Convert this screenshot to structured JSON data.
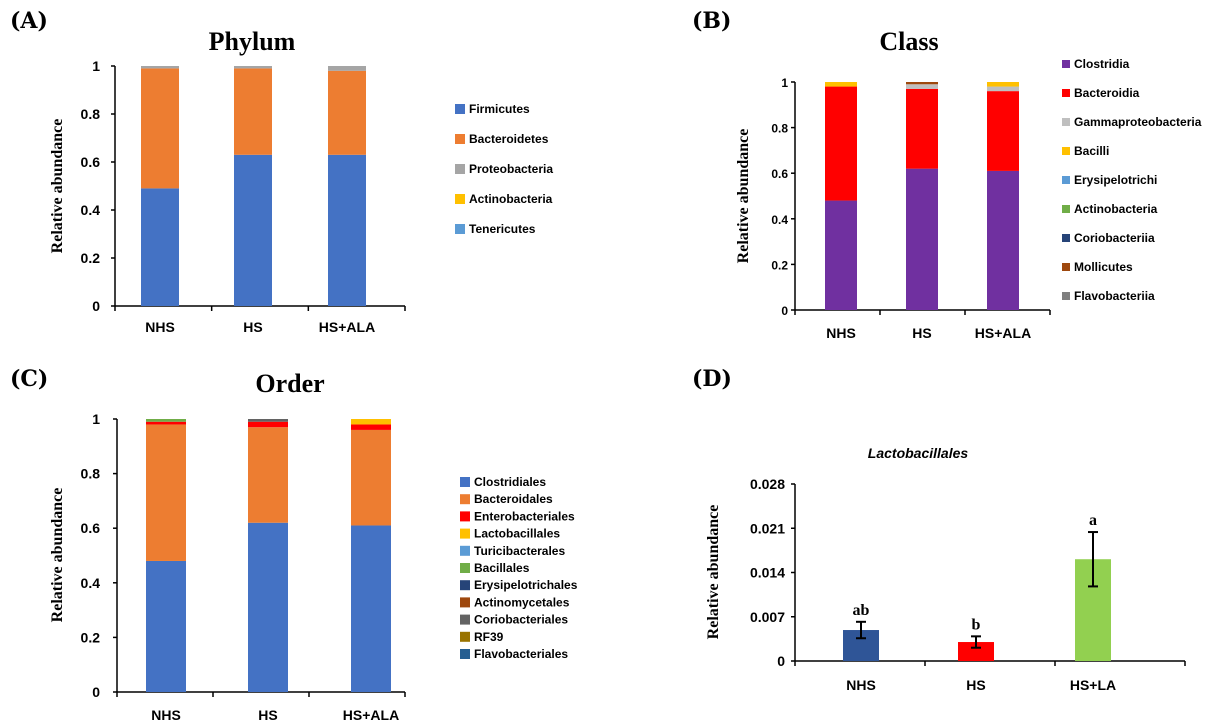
{
  "colors": {
    "Firmicutes": "#4472C4",
    "Bacteroidetes": "#ED7D31",
    "Proteobacteria": "#A5A5A5",
    "Actinobacteria": "#FFC000",
    "Tenericutes": "#5B9BD5",
    "Clostridia": "#7030A0",
    "Bacteroidia": "#FF0000",
    "Gammaproteobacteria": "#BFBFBF",
    "Bacilli": "#FFC000",
    "Erysipelotrichi": "#5B9BD5",
    "Actinobacteria_class": "#70AD47",
    "Coriobacteriia": "#264478",
    "Mollicutes": "#9E480E",
    "Flavobacteriia": "#7F7F7F",
    "Clostridiales": "#4472C4",
    "Bacteroidales": "#ED7D31",
    "Enterobacteriales": "#FF0000",
    "Lactobacillales": "#FFC000",
    "Turicibacterales": "#5B9BD5",
    "Bacillales": "#70AD47",
    "Erysipelotrichales": "#264478",
    "Actinomycetales": "#9E480E",
    "Coriobacteriales": "#636363",
    "RF39": "#997300",
    "Flavobacteriales": "#255E91",
    "NHS_bar": "#2F5597",
    "HS_bar": "#FF0000",
    "HSLA_bar": "#92D050"
  },
  "chart_data": [
    {
      "panel": "(A)",
      "type": "bar",
      "stacked": true,
      "title": "Phylum",
      "ylabel": "Relative abundance",
      "categories": [
        "NHS",
        "HS",
        "HS+ALA"
      ],
      "ylim": [
        0,
        1
      ],
      "yticks": [
        "0",
        "0.2",
        "0.4",
        "0.6",
        "0.8",
        "1"
      ],
      "series": [
        {
          "name": "Firmicutes",
          "values": [
            0.49,
            0.63,
            0.63
          ]
        },
        {
          "name": "Bacteroidetes",
          "values": [
            0.5,
            0.36,
            0.35
          ]
        },
        {
          "name": "Proteobacteria",
          "values": [
            0.01,
            0.01,
            0.02
          ]
        },
        {
          "name": "Actinobacteria",
          "values": [
            0.0,
            0.0,
            0.0
          ]
        },
        {
          "name": "Tenericutes",
          "values": [
            0.0,
            0.0,
            0.0
          ]
        }
      ],
      "legend": "right"
    },
    {
      "panel": "(B)",
      "type": "bar",
      "stacked": true,
      "title": "Class",
      "ylabel": "Relative abundance",
      "categories": [
        "NHS",
        "HS",
        "HS+ALA"
      ],
      "ylim": [
        0,
        1
      ],
      "yticks": [
        "0",
        "0.2",
        "0.4",
        "0.6",
        "0.8",
        "1"
      ],
      "series": [
        {
          "name": "Clostridia",
          "values": [
            0.48,
            0.62,
            0.61
          ]
        },
        {
          "name": "Bacteroidia",
          "values": [
            0.5,
            0.35,
            0.35
          ]
        },
        {
          "name": "Gammaproteobacteria",
          "values": [
            0.0,
            0.02,
            0.02
          ]
        },
        {
          "name": "Bacilli",
          "values": [
            0.02,
            0.0,
            0.02
          ]
        },
        {
          "name": "Erysipelotrichi",
          "values": [
            0.0,
            0.0,
            0.0
          ]
        },
        {
          "name": "Actinobacteria",
          "values": [
            0.0,
            0.0,
            0.0
          ]
        },
        {
          "name": "Coriobacteriia",
          "values": [
            0.0,
            0.0,
            0.0
          ]
        },
        {
          "name": "Mollicutes",
          "values": [
            0.0,
            0.01,
            0.0
          ]
        },
        {
          "name": "Flavobacteriia",
          "values": [
            0.0,
            0.0,
            0.0
          ]
        }
      ],
      "legend": "right"
    },
    {
      "panel": "(C)",
      "type": "bar",
      "stacked": true,
      "title": "Order",
      "ylabel": "Relative abundance",
      "categories": [
        "NHS",
        "HS",
        "HS+ALA"
      ],
      "ylim": [
        0,
        1
      ],
      "yticks": [
        "0",
        "0.2",
        "0.4",
        "0.6",
        "0.8",
        "1"
      ],
      "series": [
        {
          "name": "Clostridiales",
          "values": [
            0.48,
            0.62,
            0.61
          ]
        },
        {
          "name": "Bacteroidales",
          "values": [
            0.5,
            0.35,
            0.35
          ]
        },
        {
          "name": "Enterobacteriales",
          "values": [
            0.01,
            0.02,
            0.02
          ]
        },
        {
          "name": "Lactobacillales",
          "values": [
            0.0,
            0.0,
            0.02
          ]
        },
        {
          "name": "Turicibacterales",
          "values": [
            0.0,
            0.0,
            0.0
          ]
        },
        {
          "name": "Bacillales",
          "values": [
            0.01,
            0.0,
            0.0
          ]
        },
        {
          "name": "Erysipelotrichales",
          "values": [
            0.0,
            0.0,
            0.0
          ]
        },
        {
          "name": "Actinomycetales",
          "values": [
            0.0,
            0.0,
            0.0
          ]
        },
        {
          "name": "Coriobacteriales",
          "values": [
            0.0,
            0.01,
            0.0
          ]
        },
        {
          "name": "RF39",
          "values": [
            0.0,
            0.0,
            0.0
          ]
        },
        {
          "name": "Flavobacteriales",
          "values": [
            0.0,
            0.0,
            0.0
          ]
        }
      ],
      "legend": "right"
    },
    {
      "panel": "(D)",
      "type": "bar",
      "stacked": false,
      "title": "Lactobacillales",
      "ylabel": "Relative abundance",
      "categories": [
        "NHS",
        "HS",
        "HS+LA"
      ],
      "values": [
        0.0049,
        0.003,
        0.0161
      ],
      "errors": [
        0.0013,
        0.0009,
        0.0043
      ],
      "labels": [
        "ab",
        "b",
        "a"
      ],
      "ylim": [
        0,
        0.028
      ],
      "yticks": [
        "0",
        "0.007",
        "0.014",
        "0.021",
        "0.028"
      ]
    }
  ]
}
